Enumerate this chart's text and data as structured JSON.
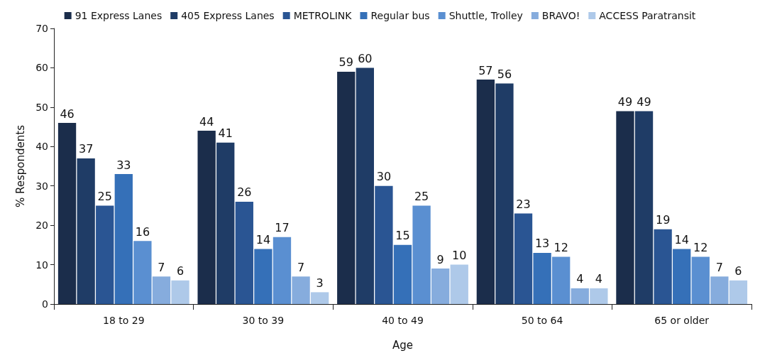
{
  "chart_data": {
    "type": "bar",
    "xlabel": "Age",
    "ylabel": "% Respondents",
    "categories": [
      "18 to 29",
      "30 to 39",
      "40 to 49",
      "50 to 64",
      "65 or older"
    ],
    "series": [
      {
        "name": "91 Express Lanes",
        "color": "#1b2d4b",
        "values": [
          46,
          44,
          59,
          57,
          49
        ]
      },
      {
        "name": "405 Express Lanes",
        "color": "#1f3c66",
        "values": [
          37,
          41,
          60,
          56,
          49
        ]
      },
      {
        "name": "METROLINK",
        "color": "#2a5593",
        "values": [
          25,
          26,
          30,
          23,
          19
        ]
      },
      {
        "name": "Regular bus",
        "color": "#3570b8",
        "values": [
          33,
          14,
          15,
          13,
          14
        ]
      },
      {
        "name": "Shuttle, Trolley",
        "color": "#5a8fd1",
        "values": [
          16,
          17,
          25,
          12,
          12
        ]
      },
      {
        "name": "BRAVO!",
        "color": "#86acdd",
        "values": [
          7,
          7,
          9,
          4,
          7
        ]
      },
      {
        "name": "ACCESS Paratransit",
        "color": "#aec9e9",
        "values": [
          6,
          3,
          10,
          4,
          6
        ]
      }
    ],
    "ylim": [
      0,
      70
    ],
    "yticks": [
      0,
      10,
      20,
      30,
      40,
      50,
      60,
      70
    ],
    "grid": false,
    "legend": "top",
    "data_labels": true
  }
}
